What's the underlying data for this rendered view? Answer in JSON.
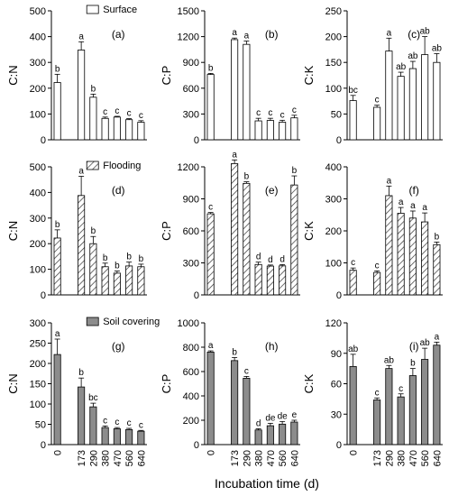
{
  "figure": {
    "xlabel": "Incubation time (d)",
    "colors": {
      "axis": "#000000",
      "gray_fill": "#8c8c8c",
      "hatch": "#333333",
      "white_fill": "#ffffff"
    }
  },
  "chart_data": [
    {
      "id": "a",
      "type": "bar",
      "label": "(a)",
      "ylabel": "C:N",
      "ylim": [
        0,
        500
      ],
      "yticks": [
        0,
        100,
        200,
        300,
        400,
        500
      ],
      "fill": "white",
      "legend": "Surface",
      "x": [
        0,
        173,
        290,
        380,
        470,
        560,
        640
      ],
      "values": [
        222,
        348,
        165,
        83,
        88,
        78,
        68
      ],
      "errors": [
        32,
        32,
        12,
        5,
        3,
        4,
        6
      ],
      "letters": [
        "b",
        "a",
        "b",
        "c",
        "c",
        "c",
        "c"
      ]
    },
    {
      "id": "b",
      "type": "bar",
      "label": "(b)",
      "ylabel": "C:P",
      "ylim": [
        0,
        1500
      ],
      "yticks": [
        0,
        300,
        600,
        900,
        1200,
        1500
      ],
      "fill": "white",
      "x": [
        0,
        173,
        290,
        380,
        470,
        560,
        640
      ],
      "values": [
        760,
        1165,
        1110,
        220,
        225,
        205,
        255
      ],
      "errors": [
        12,
        18,
        38,
        30,
        25,
        22,
        30
      ],
      "letters": [
        "b",
        "a",
        "a",
        "c",
        "c",
        "c",
        "c"
      ]
    },
    {
      "id": "c",
      "type": "bar",
      "label": "(c)",
      "ylabel": "C:K",
      "ylim": [
        0,
        250
      ],
      "yticks": [
        0,
        50,
        100,
        150,
        200,
        250
      ],
      "fill": "white",
      "x": [
        0,
        173,
        290,
        380,
        470,
        560,
        640
      ],
      "values": [
        76,
        63,
        172,
        123,
        138,
        165,
        150
      ],
      "errors": [
        10,
        4,
        25,
        8,
        14,
        35,
        17
      ],
      "letters": [
        "bc",
        "c",
        "a",
        "ab",
        "ab",
        "ab",
        "ab"
      ]
    },
    {
      "id": "d",
      "type": "bar",
      "label": "(d)",
      "ylabel": "C:N",
      "ylim": [
        0,
        500
      ],
      "yticks": [
        0,
        100,
        200,
        300,
        400,
        500
      ],
      "fill": "hatch",
      "legend": "Flooding",
      "x": [
        0,
        173,
        290,
        380,
        470,
        560,
        640
      ],
      "values": [
        222,
        388,
        200,
        110,
        85,
        113,
        110
      ],
      "errors": [
        32,
        75,
        28,
        14,
        8,
        15,
        10
      ],
      "letters": [
        "b",
        "a",
        "b",
        "b",
        "b",
        "b",
        "b"
      ]
    },
    {
      "id": "e",
      "type": "bar",
      "label": "(e)",
      "ylabel": "C:P",
      "ylim": [
        0,
        1200
      ],
      "yticks": [
        0,
        300,
        600,
        900,
        1200
      ],
      "fill": "hatch",
      "x": [
        0,
        173,
        290,
        380,
        470,
        560,
        640
      ],
      "values": [
        760,
        1230,
        1045,
        285,
        270,
        272,
        1030
      ],
      "errors": [
        12,
        35,
        15,
        22,
        10,
        12,
        85
      ],
      "letters": [
        "c",
        "a",
        "b",
        "d",
        "d",
        "d",
        "b"
      ]
    },
    {
      "id": "f",
      "type": "bar",
      "label": "(f)",
      "ylabel": "C:K",
      "ylim": [
        0,
        400
      ],
      "yticks": [
        0,
        100,
        200,
        300,
        400
      ],
      "fill": "hatch",
      "x": [
        0,
        173,
        290,
        380,
        470,
        560,
        640
      ],
      "values": [
        77,
        70,
        310,
        255,
        240,
        228,
        157
      ],
      "errors": [
        7,
        5,
        30,
        18,
        22,
        28,
        8
      ],
      "letters": [
        "c",
        "c",
        "a",
        "a",
        "a",
        "a",
        "b"
      ]
    },
    {
      "id": "g",
      "type": "bar",
      "label": "(g)",
      "ylabel": "C:N",
      "ylim": [
        0,
        300
      ],
      "yticks": [
        0,
        50,
        100,
        150,
        200,
        250,
        300
      ],
      "fill": "gray",
      "legend": "Soil covering",
      "x": [
        0,
        173,
        290,
        380,
        470,
        560,
        640
      ],
      "values": [
        222,
        142,
        93,
        42,
        39,
        37,
        33
      ],
      "errors": [
        38,
        22,
        9,
        4,
        3,
        3,
        2
      ],
      "letters": [
        "a",
        "b",
        "bc",
        "c",
        "c",
        "c",
        "c"
      ]
    },
    {
      "id": "h",
      "type": "bar",
      "label": "(h)",
      "ylabel": "C:P",
      "ylim": [
        0,
        1000
      ],
      "yticks": [
        0,
        200,
        400,
        600,
        800,
        1000
      ],
      "fill": "gray",
      "x": [
        0,
        173,
        290,
        380,
        470,
        560,
        640
      ],
      "values": [
        760,
        690,
        545,
        120,
        155,
        168,
        185
      ],
      "errors": [
        10,
        25,
        15,
        10,
        20,
        22,
        15
      ],
      "letters": [
        "a",
        "b",
        "c",
        "d",
        "de",
        "de",
        "e"
      ]
    },
    {
      "id": "i",
      "type": "bar",
      "label": "(i)",
      "ylabel": "C:K",
      "ylim": [
        0,
        120
      ],
      "yticks": [
        0,
        30,
        60,
        90,
        120
      ],
      "fill": "gray",
      "x": [
        0,
        173,
        290,
        380,
        470,
        560,
        640
      ],
      "values": [
        77,
        44,
        75,
        47,
        68,
        84,
        98
      ],
      "errors": [
        12,
        2,
        3,
        3,
        7,
        11,
        3
      ],
      "letters": [
        "ab",
        "c",
        "ab",
        "c",
        "b",
        "ab",
        "a"
      ]
    }
  ]
}
